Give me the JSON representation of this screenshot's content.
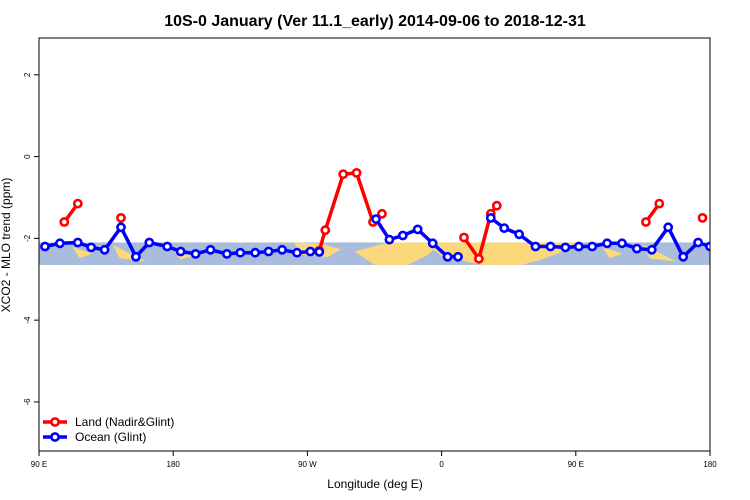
{
  "chart_data": {
    "type": "line",
    "title": "10S-0 January (Ver 11.1_early)   2014-09-06 to 2018-12-31",
    "xlabel": "Longitude (deg E)",
    "ylabel": "XCO2 - MLO trend (ppm)",
    "xlim": [
      90,
      540
    ],
    "ylim": [
      -7.2,
      2.9
    ],
    "x_ticks": [
      {
        "value": 90,
        "label": "90 E"
      },
      {
        "value": 180,
        "label": "180"
      },
      {
        "value": 270,
        "label": "90 W"
      },
      {
        "value": 360,
        "label": "0"
      },
      {
        "value": 450,
        "label": "90 E"
      },
      {
        "value": 540,
        "label": "180"
      }
    ],
    "y_ticks": [
      {
        "value": 2,
        "label": "2"
      },
      {
        "value": 0,
        "label": "0"
      },
      {
        "value": -2,
        "label": "-2"
      },
      {
        "value": -4,
        "label": "-4"
      },
      {
        "value": -6,
        "label": "-6"
      }
    ],
    "map_band": {
      "y_top": -2.1,
      "y_bottom": -2.65,
      "ocean_color": "#a8bcdc",
      "land_color": "#fcd87c"
    },
    "series": [
      {
        "name": "Land (Nadir&Glint)",
        "color": "#ff0000",
        "segments": [
          [
            [
              107,
              -1.6
            ],
            [
              116,
              -1.15
            ]
          ],
          [
            [
              145,
              -1.5
            ]
          ],
          [
            [
              278,
              -2.3
            ],
            [
              282,
              -1.8
            ],
            [
              294,
              -0.43
            ],
            [
              303,
              -0.4
            ],
            [
              314,
              -1.6
            ],
            [
              320,
              -1.4
            ]
          ],
          [
            [
              375,
              -1.98
            ],
            [
              385,
              -2.5
            ],
            [
              393,
              -1.4
            ],
            [
              397,
              -1.2
            ]
          ],
          [
            [
              497,
              -1.6
            ],
            [
              506,
              -1.15
            ]
          ],
          [
            [
              535,
              -1.5
            ]
          ]
        ]
      },
      {
        "name": "Ocean (Glint)",
        "color": "#0000ff",
        "segments": [
          [
            [
              94,
              -2.2
            ],
            [
              104,
              -2.12
            ],
            [
              116,
              -2.1
            ],
            [
              125,
              -2.22
            ],
            [
              134,
              -2.28
            ],
            [
              145,
              -1.73
            ],
            [
              155,
              -2.45
            ],
            [
              164,
              -2.1
            ],
            [
              176,
              -2.2
            ],
            [
              185,
              -2.32
            ],
            [
              195,
              -2.38
            ],
            [
              205,
              -2.28
            ],
            [
              216,
              -2.38
            ],
            [
              225,
              -2.35
            ],
            [
              235,
              -2.35
            ],
            [
              244,
              -2.32
            ],
            [
              253,
              -2.28
            ],
            [
              263,
              -2.35
            ],
            [
              272,
              -2.32
            ],
            [
              278,
              -2.33
            ]
          ],
          [
            [
              316,
              -1.53
            ],
            [
              325,
              -2.03
            ],
            [
              334,
              -1.93
            ],
            [
              344,
              -1.78
            ],
            [
              354,
              -2.12
            ],
            [
              364,
              -2.45
            ],
            [
              371,
              -2.45
            ]
          ],
          [
            [
              393,
              -1.5
            ],
            [
              402,
              -1.75
            ],
            [
              412,
              -1.9
            ],
            [
              423,
              -2.2
            ],
            [
              433,
              -2.2
            ],
            [
              443,
              -2.22
            ],
            [
              452,
              -2.2
            ],
            [
              461,
              -2.2
            ],
            [
              471,
              -2.12
            ],
            [
              481,
              -2.12
            ],
            [
              491,
              -2.25
            ],
            [
              501,
              -2.28
            ],
            [
              512,
              -1.73
            ],
            [
              522,
              -2.45
            ],
            [
              532,
              -2.1
            ],
            [
              540,
              -2.2
            ]
          ]
        ]
      }
    ],
    "legend": {
      "placement": "bottom-left",
      "entries": [
        "Land (Nadir&Glint)",
        "Ocean (Glint)"
      ]
    },
    "grid": false
  }
}
